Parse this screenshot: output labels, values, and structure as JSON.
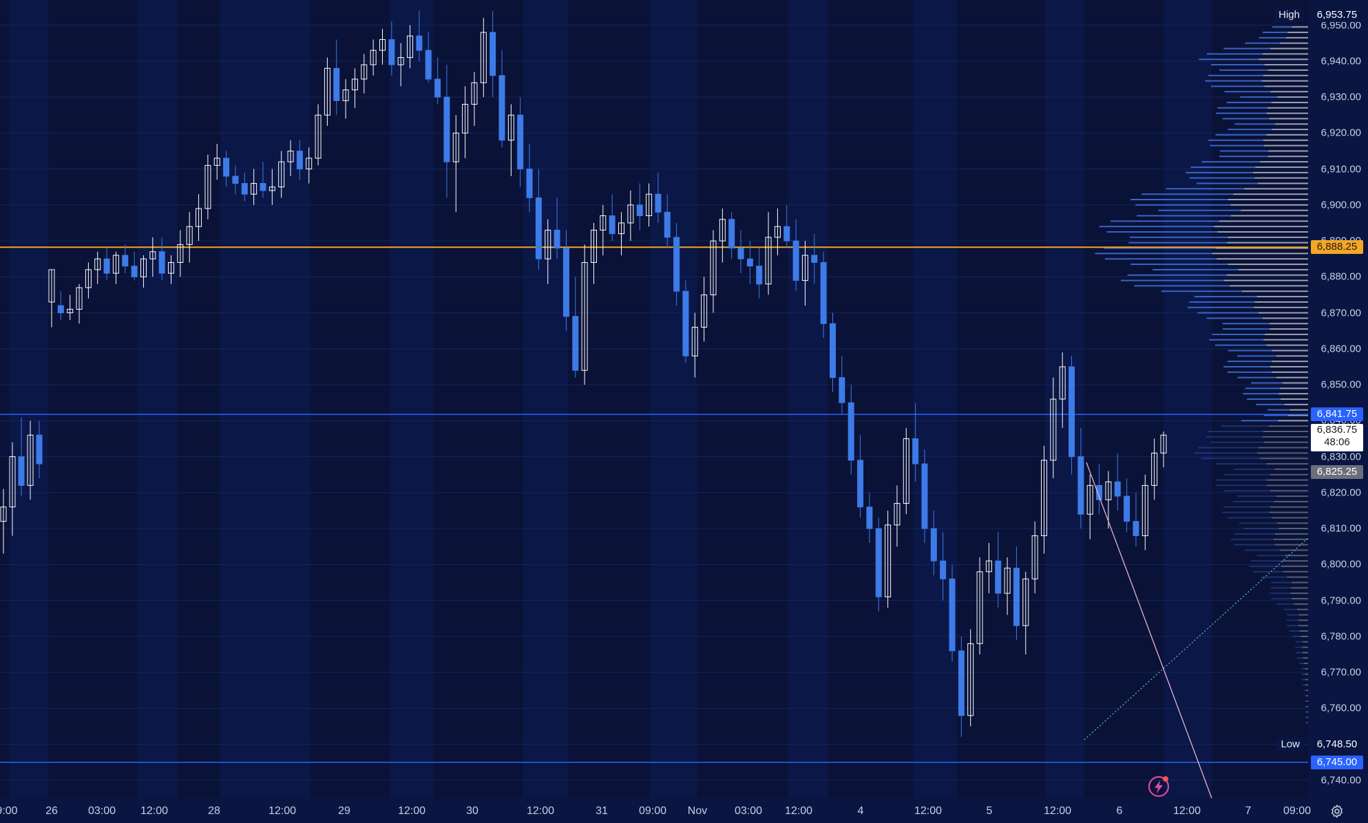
{
  "chart_data": {
    "type": "candlestick",
    "instrument_timeframe": "hourly",
    "price_range": [
      6735,
      6957
    ],
    "price_ticks": [
      "6,950.00",
      "6,940.00",
      "6,930.00",
      "6,920.00",
      "6,910.00",
      "6,900.00",
      "6,890.00",
      "6,880.00",
      "6,870.00",
      "6,860.00",
      "6,850.00",
      "6,840.00",
      "6,830.00",
      "6,820.00",
      "6,810.00",
      "6,800.00",
      "6,790.00",
      "6,780.00",
      "6,770.00",
      "6,760.00",
      "6,750.00",
      "6,740.00"
    ],
    "time_labels": [
      "9:00",
      "26",
      "03:00",
      "12:00",
      "28",
      "12:00",
      "29",
      "12:00",
      "30",
      "12:00",
      "31",
      "09:00",
      "Nov",
      "03:00",
      "12:00",
      "4",
      "12:00",
      "5",
      "12:00",
      "6",
      "12:00",
      "7",
      "09:00"
    ],
    "high": {
      "label": "High",
      "value": "6,953.75"
    },
    "low": {
      "label": "Low",
      "value": "6,748.50"
    },
    "levels": [
      {
        "value": "6,888.25",
        "price": 6888.25,
        "color": "#f5a623",
        "text_color": "#1b1b1b"
      },
      {
        "value": "6,841.75",
        "price": 6841.75,
        "color": "#2962ff",
        "text_color": "#ffffff"
      },
      {
        "value": "6,745.00",
        "price": 6745.0,
        "color": "#2962ff",
        "text_color": "#ffffff"
      }
    ],
    "current_price": {
      "value": "6,836.75",
      "countdown": "48:06"
    },
    "poc_label": {
      "value": "6,825.25"
    },
    "colors": {
      "up": "#ffffff",
      "down": "#3d7be8",
      "background": "#0b1747",
      "session_band": "#0a1237",
      "profile_blue": "#3d6fd6",
      "profile_gray": "#b9bcc6"
    },
    "candles": [
      [
        6812,
        6821,
        6803,
        6816
      ],
      [
        6816,
        6834,
        6808,
        6830
      ],
      [
        6830,
        6841,
        6819,
        6822
      ],
      [
        6822,
        6840,
        6818,
        6836
      ],
      [
        6836,
        6840,
        6824,
        6828
      ],
      [
        6873,
        6882,
        6866,
        6882
      ],
      [
        6872,
        6876,
        6868,
        6870
      ],
      [
        6870,
        6875,
        6868,
        6871
      ],
      [
        6871,
        6878,
        6867,
        6877
      ],
      [
        6877,
        6884,
        6874,
        6882
      ],
      [
        6882,
        6887,
        6878,
        6885
      ],
      [
        6885,
        6888,
        6879,
        6881
      ],
      [
        6881,
        6887,
        6878,
        6886
      ],
      [
        6886,
        6889,
        6881,
        6883
      ],
      [
        6883,
        6887,
        6879,
        6880
      ],
      [
        6880,
        6886,
        6877,
        6885
      ],
      [
        6885,
        6891,
        6880,
        6887
      ],
      [
        6887,
        6891,
        6879,
        6881
      ],
      [
        6881,
        6886,
        6878,
        6884
      ],
      [
        6884,
        6893,
        6880,
        6889
      ],
      [
        6889,
        6898,
        6884,
        6894
      ],
      [
        6894,
        6903,
        6890,
        6899
      ],
      [
        6899,
        6914,
        6896,
        6911
      ],
      [
        6911,
        6917,
        6907,
        6913
      ],
      [
        6913,
        6915,
        6905,
        6908
      ],
      [
        6908,
        6911,
        6903,
        6906
      ],
      [
        6906,
        6909,
        6901,
        6903
      ],
      [
        6903,
        6910,
        6900,
        6906
      ],
      [
        6906,
        6912,
        6902,
        6904
      ],
      [
        6904,
        6910,
        6900,
        6905
      ],
      [
        6905,
        6915,
        6902,
        6912
      ],
      [
        6912,
        6918,
        6908,
        6915
      ],
      [
        6915,
        6918,
        6907,
        6910
      ],
      [
        6910,
        6916,
        6906,
        6913
      ],
      [
        6913,
        6928,
        6911,
        6925
      ],
      [
        6925,
        6941,
        6922,
        6938
      ],
      [
        6938,
        6946,
        6925,
        6929
      ],
      [
        6929,
        6935,
        6924,
        6932
      ],
      [
        6932,
        6938,
        6927,
        6935
      ],
      [
        6935,
        6942,
        6931,
        6939
      ],
      [
        6939,
        6946,
        6936,
        6943
      ],
      [
        6943,
        6949,
        6939,
        6946
      ],
      [
        6946,
        6951,
        6936,
        6939
      ],
      [
        6939,
        6945,
        6933,
        6941
      ],
      [
        6941,
        6950,
        6938,
        6947
      ],
      [
        6947,
        6954,
        6940,
        6943
      ],
      [
        6943,
        6948,
        6934,
        6935
      ],
      [
        6935,
        6941,
        6928,
        6930
      ],
      [
        6930,
        6939,
        6902,
        6912
      ],
      [
        6912,
        6925,
        6898,
        6920
      ],
      [
        6920,
        6933,
        6913,
        6928
      ],
      [
        6928,
        6937,
        6922,
        6934
      ],
      [
        6934,
        6952,
        6930,
        6948
      ],
      [
        6948,
        6954,
        6930,
        6936
      ],
      [
        6936,
        6943,
        6916,
        6918
      ],
      [
        6918,
        6928,
        6908,
        6925
      ],
      [
        6925,
        6930,
        6905,
        6910
      ],
      [
        6910,
        6917,
        6898,
        6902
      ],
      [
        6902,
        6910,
        6882,
        6885
      ],
      [
        6885,
        6896,
        6878,
        6893
      ],
      [
        6893,
        6902,
        6885,
        6888
      ],
      [
        6888,
        6893,
        6865,
        6869
      ],
      [
        6869,
        6880,
        6852,
        6854
      ],
      [
        6854,
        6889,
        6850,
        6884
      ],
      [
        6884,
        6895,
        6878,
        6893
      ],
      [
        6893,
        6900,
        6886,
        6897
      ],
      [
        6897,
        6903,
        6890,
        6892
      ],
      [
        6892,
        6898,
        6886,
        6895
      ],
      [
        6895,
        6904,
        6890,
        6900
      ],
      [
        6900,
        6906,
        6893,
        6897
      ],
      [
        6897,
        6906,
        6894,
        6903
      ],
      [
        6903,
        6909,
        6895,
        6898
      ],
      [
        6898,
        6903,
        6888,
        6891
      ],
      [
        6891,
        6895,
        6872,
        6876
      ],
      [
        6876,
        6879,
        6856,
        6858
      ],
      [
        6858,
        6870,
        6852,
        6866
      ],
      [
        6866,
        6880,
        6862,
        6875
      ],
      [
        6875,
        6893,
        6870,
        6890
      ],
      [
        6890,
        6899,
        6884,
        6896
      ],
      [
        6896,
        6898,
        6885,
        6888
      ],
      [
        6888,
        6893,
        6881,
        6885
      ],
      [
        6885,
        6890,
        6878,
        6883
      ],
      [
        6883,
        6888,
        6874,
        6878
      ],
      [
        6878,
        6898,
        6875,
        6891
      ],
      [
        6891,
        6899,
        6886,
        6894
      ],
      [
        6894,
        6900,
        6888,
        6890
      ],
      [
        6890,
        6896,
        6876,
        6879
      ],
      [
        6879,
        6890,
        6872,
        6886
      ],
      [
        6886,
        6892,
        6878,
        6884
      ],
      [
        6884,
        6887,
        6863,
        6867
      ],
      [
        6867,
        6870,
        6848,
        6852
      ],
      [
        6852,
        6858,
        6842,
        6845
      ],
      [
        6845,
        6850,
        6825,
        6829
      ],
      [
        6829,
        6836,
        6813,
        6816
      ],
      [
        6816,
        6820,
        6806,
        6810
      ],
      [
        6810,
        6813,
        6787,
        6791
      ],
      [
        6791,
        6815,
        6788,
        6811
      ],
      [
        6811,
        6822,
        6805,
        6817
      ],
      [
        6817,
        6838,
        6814,
        6835
      ],
      [
        6835,
        6845,
        6823,
        6828
      ],
      [
        6828,
        6832,
        6806,
        6810
      ],
      [
        6810,
        6815,
        6797,
        6801
      ],
      [
        6801,
        6809,
        6790,
        6796
      ],
      [
        6796,
        6800,
        6773,
        6776
      ],
      [
        6776,
        6780,
        6752,
        6758
      ],
      [
        6758,
        6782,
        6755,
        6778
      ],
      [
        6778,
        6802,
        6775,
        6798
      ],
      [
        6798,
        6806,
        6792,
        6801
      ],
      [
        6801,
        6809,
        6788,
        6792
      ],
      [
        6792,
        6802,
        6786,
        6799
      ],
      [
        6799,
        6805,
        6779,
        6783
      ],
      [
        6783,
        6798,
        6775,
        6796
      ],
      [
        6796,
        6812,
        6792,
        6808
      ],
      [
        6808,
        6833,
        6803,
        6829
      ],
      [
        6829,
        6852,
        6824,
        6846
      ],
      [
        6846,
        6859,
        6838,
        6855
      ],
      [
        6855,
        6858,
        6825,
        6830
      ],
      [
        6830,
        6838,
        6810,
        6814
      ],
      [
        6814,
        6825,
        6807,
        6822
      ],
      [
        6822,
        6828,
        6814,
        6818
      ],
      [
        6818,
        6826,
        6810,
        6823
      ],
      [
        6823,
        6831,
        6815,
        6819
      ],
      [
        6819,
        6824,
        6809,
        6812
      ],
      [
        6812,
        6820,
        6805,
        6808
      ],
      [
        6808,
        6825,
        6804,
        6822
      ],
      [
        6822,
        6835,
        6818,
        6831
      ],
      [
        6831,
        6837,
        6827,
        6836
      ]
    ],
    "trendlines": [
      {
        "from": [
          1578,
          672
        ],
        "to": [
          1760,
          1160
        ],
        "color": "#e8b4cf",
        "style": "solid"
      },
      {
        "from": [
          1575,
          1075
        ],
        "to": [
          1900,
          782
        ],
        "color": "#4fc3c6",
        "style": "dotted"
      }
    ]
  },
  "ui": {
    "settings_icon": "gear-icon",
    "alert_icon": "lightning-alert-icon"
  }
}
